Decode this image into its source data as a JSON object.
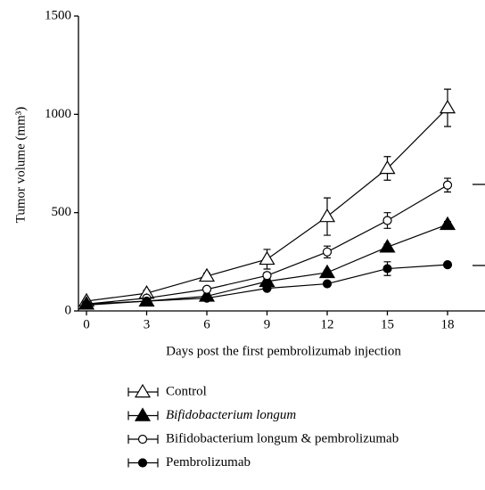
{
  "chart_data": {
    "type": "line",
    "xlabel": "Days post the first pembrolizumab injection",
    "ylabel": "Tumor volume (mm³)",
    "x": [
      0,
      3,
      6,
      9,
      12,
      15,
      18
    ],
    "xlim": [
      -0.4,
      19.9
    ],
    "xticks": [
      0,
      3,
      6,
      9,
      12,
      15,
      18
    ],
    "ylim": [
      0,
      1500
    ],
    "yticks": [
      0,
      500,
      1000,
      1500
    ],
    "series": [
      {
        "name": "Control",
        "marker": "triangle-open",
        "color": "#000000",
        "values": [
          50,
          90,
          177,
          263,
          480,
          725,
          1033
        ],
        "errors": [
          10,
          15,
          15,
          50,
          95,
          60,
          95
        ]
      },
      {
        "name": "Bifidobacterium longum",
        "marker": "triangle-filled",
        "color": "#000000",
        "values": [
          35,
          50,
          75,
          150,
          195,
          325,
          440
        ],
        "errors": [
          5,
          8,
          10,
          12,
          12,
          15,
          15
        ]
      },
      {
        "name": "Bifidobacterium longum & pembrolizumab",
        "marker": "circle-open",
        "color": "#000000",
        "values": [
          35,
          65,
          110,
          180,
          300,
          460,
          640
        ],
        "errors": [
          5,
          8,
          10,
          15,
          30,
          40,
          35
        ]
      },
      {
        "name": "Pembrolizumab",
        "marker": "circle-filled",
        "color": "#000000",
        "values": [
          30,
          50,
          65,
          115,
          138,
          215,
          235
        ],
        "errors": [
          5,
          8,
          8,
          10,
          10,
          35,
          10
        ]
      }
    ]
  }
}
